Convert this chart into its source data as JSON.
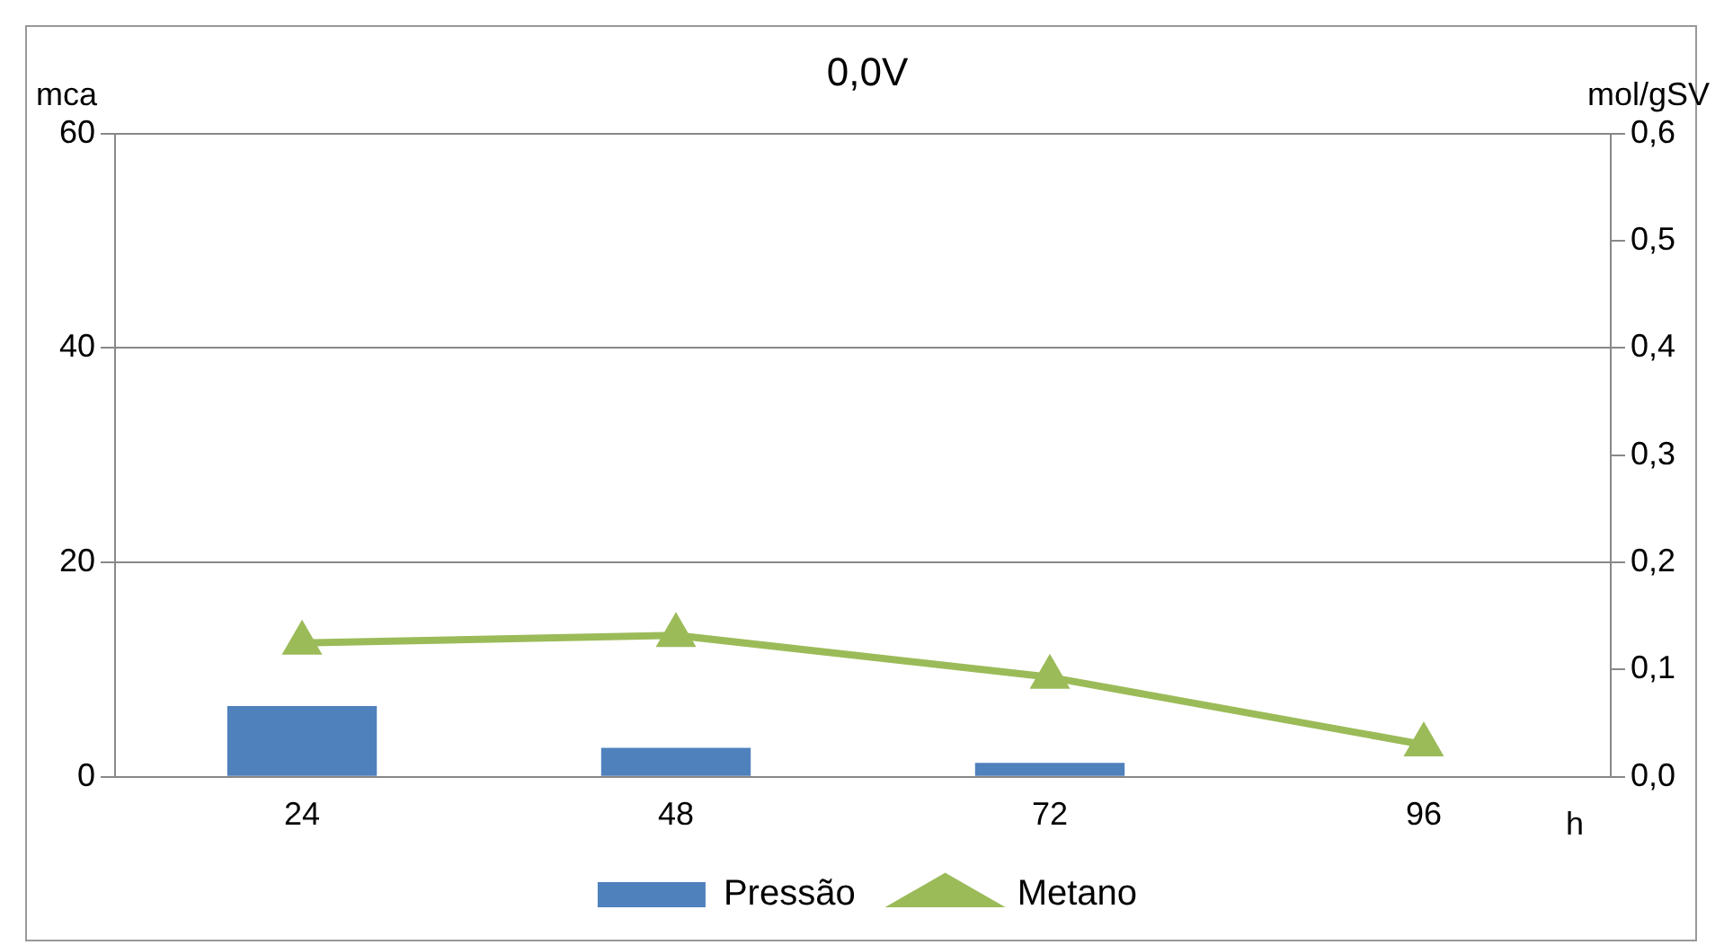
{
  "chart_data": {
    "type": "bar",
    "title": "0,0V",
    "xlabel": "h",
    "ylabel": "mca",
    "y2label": "mol/gSV",
    "categories": [
      "24",
      "48",
      "72",
      "96"
    ],
    "series": [
      {
        "name": "Pressão",
        "color": "#4f81bd",
        "values": [
          6.6,
          2.7,
          1.3,
          0
        ]
      },
      {
        "name": "Metano",
        "type": "line",
        "axis": "y2",
        "color": "#9bbb59",
        "marker": "triangle",
        "values": [
          0.125,
          0.132,
          0.093,
          0.03
        ]
      }
    ],
    "ylim": [
      0,
      60
    ],
    "yticks": [
      0,
      20,
      40,
      60
    ],
    "y2lim": [
      0,
      0.6
    ],
    "y2ticks": [
      {
        "value": 0,
        "label": "0,0"
      },
      {
        "value": 0.1,
        "label": "0,1"
      },
      {
        "value": 0.2,
        "label": "0,2"
      },
      {
        "value": 0.3,
        "label": "0,3"
      },
      {
        "value": 0.4,
        "label": "0,4"
      },
      {
        "value": 0.5,
        "label": "0,5"
      },
      {
        "value": 0.6,
        "label": "0,6"
      }
    ],
    "grid": "y",
    "legend": "bottom"
  }
}
